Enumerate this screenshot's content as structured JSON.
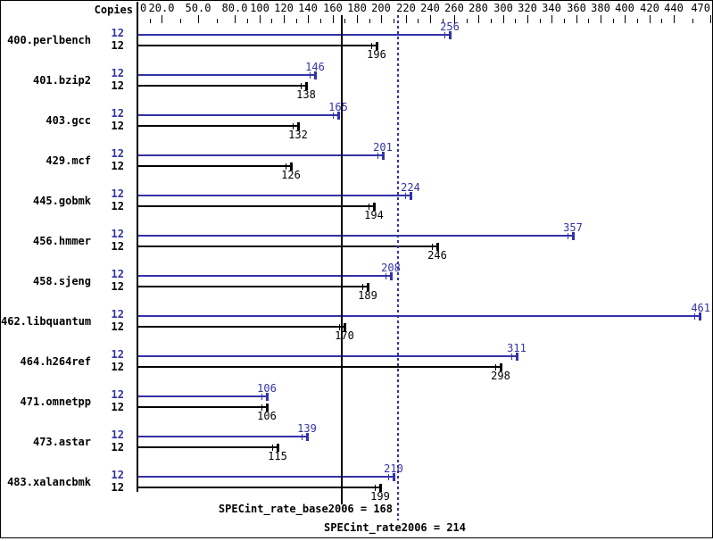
{
  "header": {
    "copies_label": "Copies"
  },
  "colors": {
    "peak_blue": "#3232a8",
    "base_black": "#000000",
    "background": "#ffffff"
  },
  "footer": {
    "base_label": "SPECint_rate_base2006 = 168",
    "peak_label": "SPECint_rate2006 = 214"
  },
  "chart_data": {
    "type": "bar",
    "orientation": "horizontal",
    "title": "",
    "xlabel": "",
    "ylabel": "Copies",
    "xlim": [
      0,
      470
    ],
    "grid": false,
    "axis_ticks": [
      {
        "value": 0,
        "label": "0"
      },
      {
        "value": 20,
        "label": "20.0"
      },
      {
        "value": 50,
        "label": "50.0"
      },
      {
        "value": 80,
        "label": "80.0"
      },
      {
        "value": 100,
        "label": "100"
      },
      {
        "value": 120,
        "label": "120"
      },
      {
        "value": 140,
        "label": "140"
      },
      {
        "value": 160,
        "label": "160"
      },
      {
        "value": 180,
        "label": "180"
      },
      {
        "value": 200,
        "label": "200"
      },
      {
        "value": 220,
        "label": "220"
      },
      {
        "value": 240,
        "label": "240"
      },
      {
        "value": 260,
        "label": "260"
      },
      {
        "value": 280,
        "label": "280"
      },
      {
        "value": 300,
        "label": "300"
      },
      {
        "value": 320,
        "label": "320"
      },
      {
        "value": 340,
        "label": "340"
      },
      {
        "value": 360,
        "label": "360"
      },
      {
        "value": 380,
        "label": "380"
      },
      {
        "value": 400,
        "label": "400"
      },
      {
        "value": 420,
        "label": "420"
      },
      {
        "value": 440,
        "label": "440"
      },
      {
        "value": 470,
        "label": "470"
      }
    ],
    "reference_lines": [
      {
        "name": "base",
        "value": 168,
        "style": "solid",
        "color": "#000000"
      },
      {
        "name": "peak",
        "value": 214,
        "style": "dotted",
        "color": "#3232a8"
      }
    ],
    "series_info": [
      {
        "key": "peak",
        "name": "SPECint_rate2006",
        "color": "#3232a8"
      },
      {
        "key": "base",
        "name": "SPECint_rate_base2006",
        "color": "#000000"
      }
    ],
    "benchmarks": [
      {
        "name": "400.perlbench",
        "copies_peak": 12,
        "copies_base": 12,
        "peak": 256,
        "base": 196
      },
      {
        "name": "401.bzip2",
        "copies_peak": 12,
        "copies_base": 12,
        "peak": 146,
        "base": 138
      },
      {
        "name": "403.gcc",
        "copies_peak": 12,
        "copies_base": 12,
        "peak": 165,
        "base": 132
      },
      {
        "name": "429.mcf",
        "copies_peak": 12,
        "copies_base": 12,
        "peak": 201,
        "base": 126
      },
      {
        "name": "445.gobmk",
        "copies_peak": 12,
        "copies_base": 12,
        "peak": 224,
        "base": 194
      },
      {
        "name": "456.hmmer",
        "copies_peak": 12,
        "copies_base": 12,
        "peak": 357,
        "base": 246
      },
      {
        "name": "458.sjeng",
        "copies_peak": 12,
        "copies_base": 12,
        "peak": 208,
        "base": 189
      },
      {
        "name": "462.libquantum",
        "copies_peak": 12,
        "copies_base": 12,
        "peak": 461,
        "base": 170
      },
      {
        "name": "464.h264ref",
        "copies_peak": 12,
        "copies_base": 12,
        "peak": 311,
        "base": 298
      },
      {
        "name": "471.omnetpp",
        "copies_peak": 12,
        "copies_base": 12,
        "peak": 106,
        "base": 106
      },
      {
        "name": "473.astar",
        "copies_peak": 12,
        "copies_base": 12,
        "peak": 139,
        "base": 115
      },
      {
        "name": "483.xalancbmk",
        "copies_peak": 12,
        "copies_base": 12,
        "peak": 210,
        "base": 199
      }
    ]
  }
}
